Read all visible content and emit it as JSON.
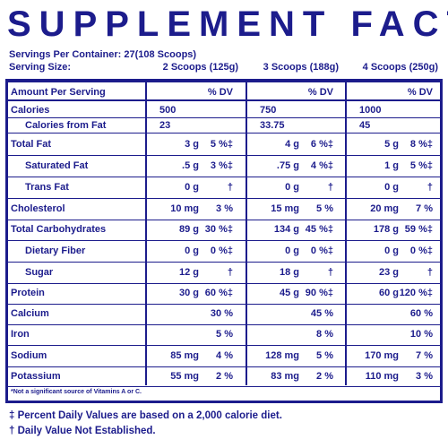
{
  "title": "SUPPLEMENT FACTS",
  "servings_per_container": "Servings Per Container: 27(108 Scoops)",
  "serving_size_label": "Serving Size:",
  "serving_sizes": [
    "2 Scoops (125g)",
    "3 Scoops (188g)",
    "4 Scoops (250g)"
  ],
  "header": {
    "amount": "Amount Per Serving",
    "dv": "% DV"
  },
  "rows": [
    {
      "name": "Calories",
      "indent": false,
      "cells": [
        [
          "500",
          null
        ],
        [
          "750",
          null
        ],
        [
          "1000",
          null
        ]
      ]
    },
    {
      "name": "Calories from Fat",
      "indent": true,
      "cells": [
        [
          "23",
          null
        ],
        [
          "33.75",
          null
        ],
        [
          "45",
          null
        ]
      ]
    },
    {
      "name": "Total Fat",
      "indent": false,
      "cells": [
        [
          "3 g",
          "5 %‡"
        ],
        [
          "4 g",
          "6 %‡"
        ],
        [
          "5 g",
          "8 %‡"
        ]
      ]
    },
    {
      "name": "Saturated Fat",
      "indent": true,
      "cells": [
        [
          ".5 g",
          "3 %‡"
        ],
        [
          ".75 g",
          "4 %‡"
        ],
        [
          "1 g",
          "5 %‡"
        ]
      ]
    },
    {
      "name": "Trans Fat",
      "indent": true,
      "cells": [
        [
          "0 g",
          "†"
        ],
        [
          "0 g",
          "†"
        ],
        [
          "0 g",
          "†"
        ]
      ]
    },
    {
      "name": "Cholesterol",
      "indent": false,
      "cells": [
        [
          "10 mg",
          "3 %"
        ],
        [
          "15 mg",
          "5 %"
        ],
        [
          "20 mg",
          "7 %"
        ]
      ]
    },
    {
      "name": "Total Carbohydrates",
      "indent": false,
      "cells": [
        [
          "89 g",
          "30 %‡"
        ],
        [
          "134 g",
          "45 %‡"
        ],
        [
          "178 g",
          "59 %‡"
        ]
      ]
    },
    {
      "name": "Dietary Fiber",
      "indent": true,
      "cells": [
        [
          "0 g",
          "0 %‡"
        ],
        [
          "0 g",
          "0 %‡"
        ],
        [
          "0 g",
          "0 %‡"
        ]
      ]
    },
    {
      "name": "Sugar",
      "indent": true,
      "cells": [
        [
          "12 g",
          "†"
        ],
        [
          "18 g",
          "†"
        ],
        [
          "23 g",
          "†"
        ]
      ]
    },
    {
      "name": "Protein",
      "indent": false,
      "cells": [
        [
          "30 g",
          "60 %‡"
        ],
        [
          "45 g",
          "90 %‡"
        ],
        [
          "60 g",
          "120 %‡"
        ]
      ]
    },
    {
      "name": "Calcium",
      "indent": false,
      "cells": [
        [
          null,
          "30 %"
        ],
        [
          null,
          "45 %"
        ],
        [
          null,
          "60 %"
        ]
      ]
    },
    {
      "name": "Iron",
      "indent": false,
      "cells": [
        [
          null,
          "5 %"
        ],
        [
          null,
          "8 %"
        ],
        [
          null,
          "10 %"
        ]
      ]
    },
    {
      "name": "Sodium",
      "indent": false,
      "cells": [
        [
          "85 mg",
          "4 %"
        ],
        [
          "128 mg",
          "5 %"
        ],
        [
          "170 mg",
          "7 %"
        ]
      ]
    },
    {
      "name": "Potassium",
      "indent": false,
      "cells": [
        [
          "55 mg",
          "2 %"
        ],
        [
          "83 mg",
          "2 %"
        ],
        [
          "110 mg",
          "3 %"
        ]
      ]
    }
  ],
  "note": "*Not a significant source of Vitamins A or C.",
  "footnotes": [
    "‡ Percent Daily Values are based on a 2,000 calorie diet.",
    "† Daily Value Not Established."
  ]
}
